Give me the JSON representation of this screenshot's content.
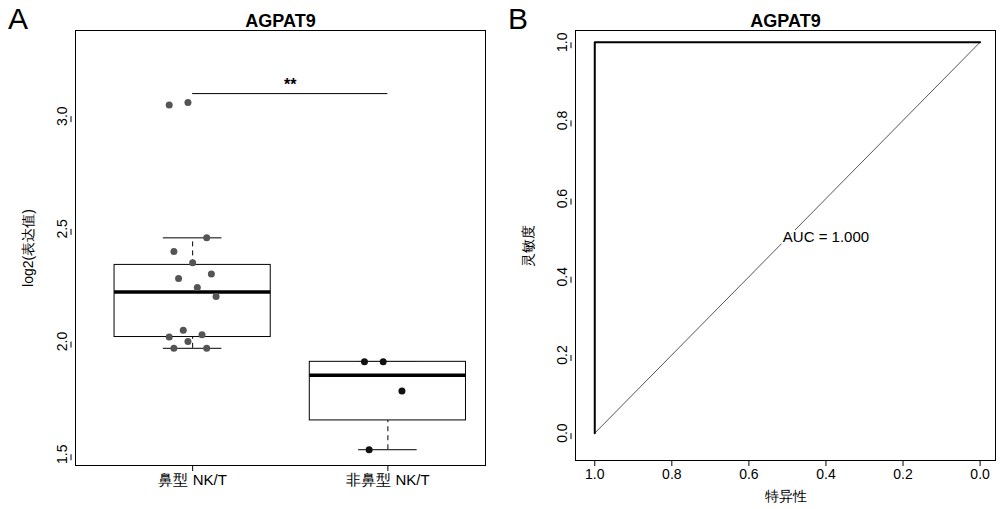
{
  "chart_data": [
    {
      "panel": "A",
      "type": "box",
      "title": "AGPAT9",
      "ylabel": "log2(表达值)",
      "categories": [
        "鼻型 NK/T",
        "非鼻型 NK/T"
      ],
      "points": [
        [
          3.05,
          3.06,
          2.46,
          2.4,
          2.35,
          2.3,
          2.28,
          2.24,
          2.2,
          2.05,
          2.03,
          2.02,
          2.0,
          1.97,
          1.97
        ],
        [
          1.91,
          1.91,
          1.78,
          1.52
        ]
      ],
      "box": [
        {
          "whisker_low": 1.97,
          "q1": 2.02,
          "median": 2.22,
          "q3": 2.34,
          "whisker_high": 2.46
        },
        {
          "whisker_low": 1.52,
          "q1": 1.65,
          "median": 1.85,
          "q3": 1.91,
          "whisker_high": 1.91
        }
      ],
      "annotation": {
        "text": "**",
        "y": 3.1
      },
      "ylim": [
        1.45,
        3.38
      ],
      "yticks": [
        {
          "value": 1.5,
          "label": "1.5"
        },
        {
          "value": 2,
          "label": "2.0"
        },
        {
          "value": 2.5,
          "label": "2.5"
        },
        {
          "value": 3,
          "label": "3.0"
        }
      ]
    },
    {
      "panel": "B",
      "type": "line",
      "title": "AGPAT9",
      "xlabel": "特异性",
      "ylabel": "灵敏度",
      "x": [
        1,
        1,
        0
      ],
      "values": [
        0,
        1,
        1
      ],
      "reference": {
        "x": [
          1,
          0
        ],
        "values": [
          0,
          1
        ]
      },
      "annotation": {
        "text": "AUC = 1.000",
        "x": 0.4,
        "y": 0.5
      },
      "xlim": [
        1.05,
        -0.04
      ],
      "ylim": [
        -0.07,
        1.03
      ],
      "xticks": [
        {
          "value": 1,
          "label": "1.0"
        },
        {
          "value": 0.8,
          "label": "0.8"
        },
        {
          "value": 0.6,
          "label": "0.6"
        },
        {
          "value": 0.4,
          "label": "0.4"
        },
        {
          "value": 0.2,
          "label": "0.2"
        },
        {
          "value": 0,
          "label": "0.0"
        }
      ],
      "yticks": [
        {
          "value": 0,
          "label": "0.0"
        },
        {
          "value": 0.2,
          "label": "0.2"
        },
        {
          "value": 0.4,
          "label": "0.4"
        },
        {
          "value": 0.6,
          "label": "0.6"
        },
        {
          "value": 0.8,
          "label": "0.8"
        },
        {
          "value": 1,
          "label": "1.0"
        }
      ]
    }
  ]
}
